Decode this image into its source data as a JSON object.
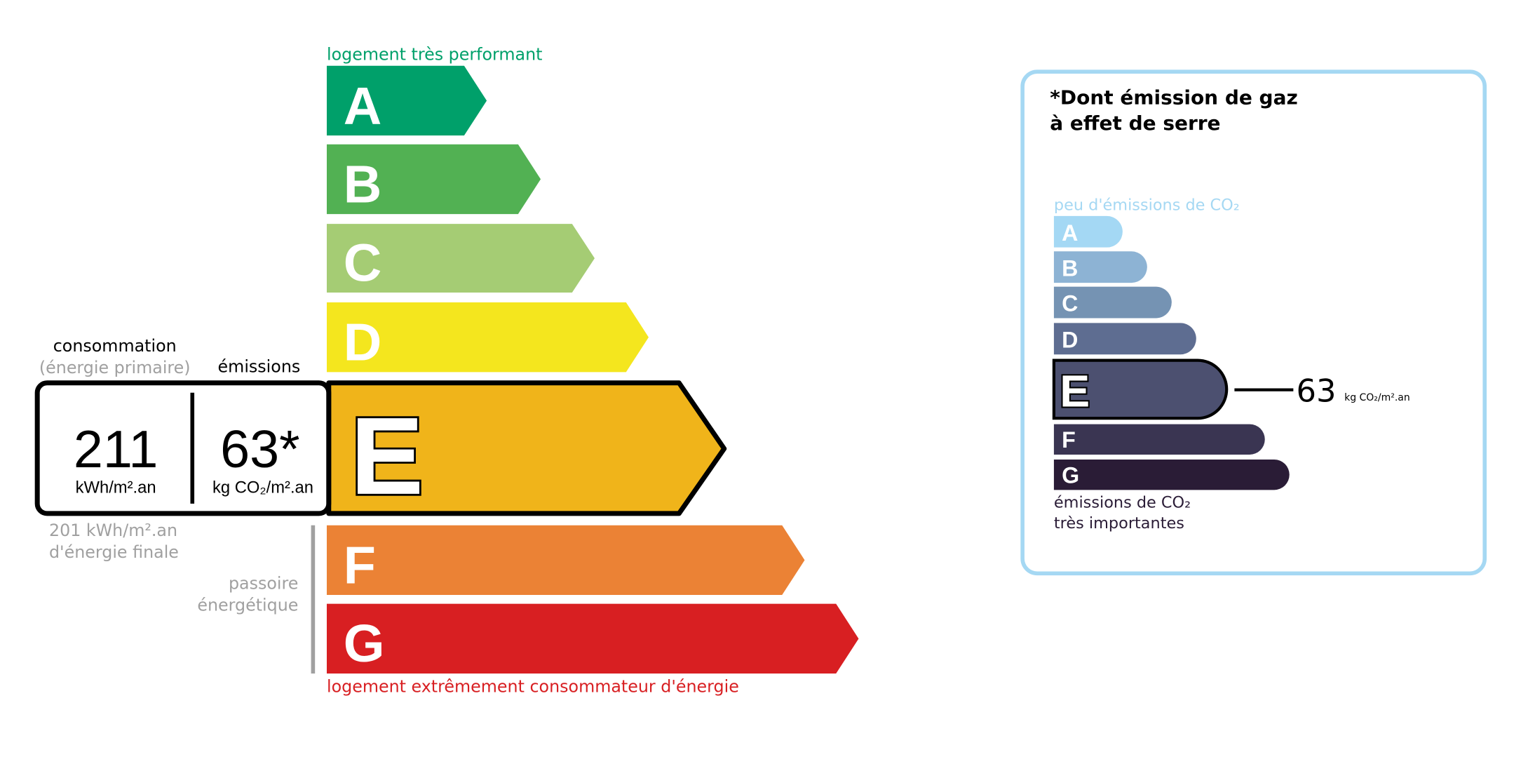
{
  "energy": {
    "top_label": "logement très performant",
    "bottom_label": "logement extrêmement consommateur d'énergie",
    "classes": [
      {
        "letter": "A",
        "color": "#00a06a"
      },
      {
        "letter": "B",
        "color": "#52b153"
      },
      {
        "letter": "C",
        "color": "#a5cc74"
      },
      {
        "letter": "D",
        "color": "#f4e61e"
      },
      {
        "letter": "E",
        "color": "#f0b41a"
      },
      {
        "letter": "F",
        "color": "#eb8235"
      },
      {
        "letter": "G",
        "color": "#d81f22"
      }
    ],
    "current_class": "E",
    "consumption_header": "consommation",
    "consumption_subheader": "(énergie primaire)",
    "emissions_header": "émissions",
    "consumption_value": "211",
    "consumption_unit": "kWh/m².an",
    "emissions_value": "63*",
    "emissions_unit": "kg CO₂/m².an",
    "final_energy_line1": "201 kWh/m².an",
    "final_energy_line2": "d'énergie finale",
    "passoire_line1": "passoire",
    "passoire_line2": "énergétique"
  },
  "ges": {
    "title_line1": "*Dont émission de gaz",
    "title_line2": "à effet de serre",
    "top_label": "peu d'émissions de CO₂",
    "bottom_label_line1": "émissions de CO₂",
    "bottom_label_line2": "très importantes",
    "classes": [
      {
        "letter": "A",
        "color": "#a4d8f4"
      },
      {
        "letter": "B",
        "color": "#8db3d4"
      },
      {
        "letter": "C",
        "color": "#7593b3"
      },
      {
        "letter": "D",
        "color": "#5e6d91"
      },
      {
        "letter": "E",
        "color": "#4c5070"
      },
      {
        "letter": "F",
        "color": "#3a3552"
      },
      {
        "letter": "G",
        "color": "#2a1c36"
      }
    ],
    "current_class": "E",
    "value": "63",
    "unit": "kg CO₂/m².an",
    "border_color": "#a5d8f3"
  }
}
